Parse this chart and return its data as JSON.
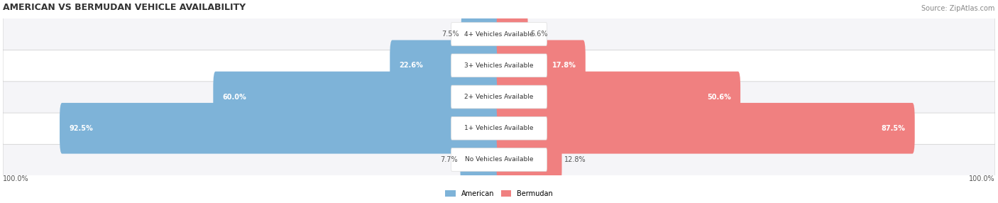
{
  "title": "AMERICAN VS BERMUDAN VEHICLE AVAILABILITY",
  "source": "Source: ZipAtlas.com",
  "categories": [
    "No Vehicles Available",
    "1+ Vehicles Available",
    "2+ Vehicles Available",
    "3+ Vehicles Available",
    "4+ Vehicles Available"
  ],
  "american_values": [
    7.7,
    92.5,
    60.0,
    22.6,
    7.5
  ],
  "bermudan_values": [
    12.8,
    87.5,
    50.6,
    17.8,
    5.6
  ],
  "american_color": "#7EB3D8",
  "bermudan_color": "#F08080",
  "american_color_light": "#A8C8E8",
  "bermudan_color_light": "#F4A0A0",
  "bar_bg_color": "#F0F0F4",
  "row_bg_even": "#FFFFFF",
  "row_bg_odd": "#F5F5F8",
  "label_bg": "#FFFFFF",
  "axis_label_left": "100.0%",
  "axis_label_right": "100.0%",
  "legend_american": "American",
  "legend_bermudan": "Bermudan",
  "max_value": 100.0
}
